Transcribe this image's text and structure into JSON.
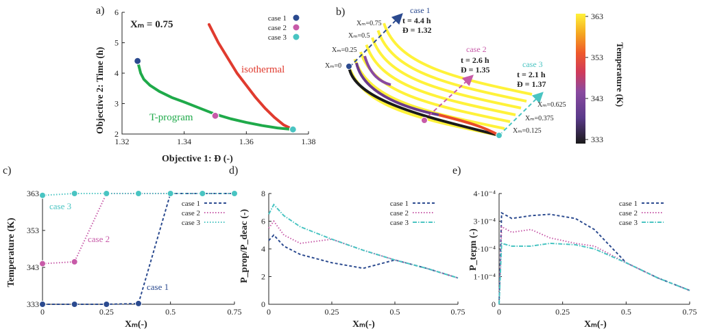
{
  "colors": {
    "case1": "#2b4a8f",
    "case2": "#c75aa8",
    "case3": "#49c4c2",
    "green": "#1faa4a",
    "red": "#e03b2f",
    "axis": "#222222"
  },
  "chart_data": [
    {
      "id": "a",
      "panel_label": "a)",
      "type": "scatter",
      "title": "Xₘ = 0.75",
      "xlabel": "Objective 1: Đ (-)",
      "ylabel": "Objective 2: Time (h)",
      "xlim": [
        1.32,
        1.38
      ],
      "ylim": [
        2,
        6
      ],
      "xticks": [
        "1.32",
        "1.34",
        "1.36",
        "1.38"
      ],
      "yticks": [
        "2",
        "3",
        "4",
        "5",
        "6"
      ],
      "series": [
        {
          "name": "isothermal",
          "color_key": "red",
          "x": [
            1.348,
            1.351,
            1.354,
            1.357,
            1.36,
            1.363,
            1.366,
            1.369,
            1.372,
            1.375
          ],
          "y": [
            5.6,
            5.0,
            4.5,
            4.0,
            3.6,
            3.2,
            2.85,
            2.55,
            2.3,
            2.15
          ]
        },
        {
          "name": "T-program",
          "color_key": "green",
          "x": [
            1.325,
            1.3255,
            1.326,
            1.327,
            1.329,
            1.332,
            1.336,
            1.34,
            1.345,
            1.35,
            1.355,
            1.36,
            1.365,
            1.37,
            1.375
          ],
          "y": [
            4.4,
            4.2,
            4.0,
            3.8,
            3.6,
            3.4,
            3.2,
            3.05,
            2.85,
            2.65,
            2.5,
            2.38,
            2.28,
            2.2,
            2.15
          ]
        }
      ],
      "markers": [
        {
          "name": "case 1",
          "x": 1.325,
          "y": 4.4,
          "color_key": "case1"
        },
        {
          "name": "case 2",
          "x": 1.35,
          "y": 2.6,
          "color_key": "case2"
        },
        {
          "name": "case 3",
          "x": 1.375,
          "y": 2.15,
          "color_key": "case3"
        }
      ],
      "legend": [
        "case 1",
        "case 2",
        "case 3"
      ],
      "labels": {
        "isothermal": "isothermal",
        "tprogram": "T-program"
      }
    },
    {
      "id": "b",
      "panel_label": "b)",
      "type": "line",
      "colorbar": {
        "title": "Temperature (K)",
        "ticks": [
          "363",
          "353",
          "343",
          "333"
        ],
        "range": [
          333,
          363
        ]
      },
      "annotations": {
        "case1": {
          "title": "case 1",
          "t": "t = 4.4 h",
          "D": "Đ = 1.32"
        },
        "case2": {
          "title": "case 2",
          "t": "t = 2.6 h",
          "D": "Đ = 1.35"
        },
        "case3": {
          "title": "case 3",
          "t": "t = 2.1 h",
          "D": "Đ = 1.37"
        }
      },
      "xm_labels": [
        "Xₘ=0",
        "Xₘ=0.25",
        "Xₘ=0.5",
        "Xₘ=0.75",
        "Xₘ=0.625",
        "Xₘ=0.375",
        "Xₘ=0.125"
      ]
    },
    {
      "id": "c",
      "panel_label": "c)",
      "type": "line",
      "xlabel": "Xₘ(-)",
      "ylabel": "Temperature (K)",
      "xlim": [
        0,
        0.75
      ],
      "ylim": [
        333,
        363
      ],
      "xticks": [
        "0",
        "0.25",
        "0.5",
        "0.75"
      ],
      "yticks": [
        "333",
        "343",
        "353",
        "363"
      ],
      "x": [
        0,
        0.125,
        0.25,
        0.375,
        0.5,
        0.625,
        0.75
      ],
      "series": [
        {
          "name": "case 1",
          "color_key": "case1",
          "dash": "4,3",
          "values": [
            333,
            333,
            333,
            333.2,
            363,
            363,
            363
          ]
        },
        {
          "name": "case 2",
          "color_key": "case2",
          "dash": "1.5,2.5",
          "values": [
            344,
            344.5,
            363,
            363,
            363,
            363,
            363
          ]
        },
        {
          "name": "case 3",
          "color_key": "case3",
          "dash": "1.5,2.5",
          "values": [
            362.5,
            363,
            363,
            363,
            363,
            363,
            363
          ]
        }
      ],
      "legend": [
        "case 1",
        "case 2",
        "case 3"
      ],
      "curve_labels": [
        "case 3",
        "case 2",
        "case 1"
      ]
    },
    {
      "id": "d",
      "panel_label": "d)",
      "type": "line",
      "xlabel": "Xₘ(-)",
      "ylabel": "P_prop/P_deac (-)",
      "xlim": [
        0,
        0.75
      ],
      "ylim": [
        0,
        8
      ],
      "xticks": [
        "0",
        "0.25",
        "0.5",
        "0.75"
      ],
      "yticks": [
        "0",
        "2",
        "4",
        "6",
        "8"
      ],
      "x": [
        0,
        0.02,
        0.06,
        0.125,
        0.25,
        0.375,
        0.5,
        0.625,
        0.75
      ],
      "series": [
        {
          "name": "case 1",
          "color_key": "case1",
          "dash": "4,3",
          "values": [
            4.6,
            5.0,
            4.2,
            3.6,
            3.0,
            2.6,
            3.2,
            2.6,
            1.9
          ]
        },
        {
          "name": "case 2",
          "color_key": "case2",
          "dash": "1.5,2.5",
          "values": [
            5.5,
            6.0,
            5.0,
            4.4,
            4.7,
            3.9,
            3.2,
            2.6,
            1.9
          ]
        },
        {
          "name": "case 3",
          "color_key": "case3",
          "dash": "6,2,1.5,2",
          "values": [
            6.5,
            7.2,
            6.4,
            5.6,
            4.7,
            3.9,
            3.2,
            2.6,
            1.9
          ]
        }
      ],
      "legend": [
        "case 1",
        "case 2",
        "case 3"
      ]
    },
    {
      "id": "e",
      "panel_label": "e)",
      "type": "line",
      "xlabel": "Xₘ(-)",
      "ylabel": "P_term (-)",
      "xlim": [
        0,
        0.75
      ],
      "ylim": [
        0,
        0.0004
      ],
      "xticks": [
        "0",
        "0.25",
        "0.5",
        "0.75"
      ],
      "yticks": [
        "0",
        "1·10⁻⁴",
        "2·10⁻⁴",
        "3·10⁻⁴",
        "4·10⁻⁴"
      ],
      "x": [
        0,
        0.01,
        0.05,
        0.125,
        0.2,
        0.3,
        0.375,
        0.5,
        0.625,
        0.75
      ],
      "series": [
        {
          "name": "case 1",
          "color_key": "case1",
          "dash": "4,3",
          "values": [
            0.0,
            0.00033,
            0.00031,
            0.00032,
            0.000325,
            0.00031,
            0.00027,
            0.00015,
            9.5e-05,
            5e-05
          ]
        },
        {
          "name": "case 2",
          "color_key": "case2",
          "dash": "1.5,2.5",
          "values": [
            0.0,
            0.00028,
            0.00026,
            0.00027,
            0.00024,
            0.00022,
            0.00021,
            0.00015,
            9.5e-05,
            5e-05
          ]
        },
        {
          "name": "case 3",
          "color_key": "case3",
          "dash": "6,2,1.5,2",
          "values": [
            0.0,
            0.00022,
            0.00021,
            0.00021,
            0.00022,
            0.000215,
            0.0002,
            0.00015,
            9.5e-05,
            5e-05
          ]
        }
      ],
      "legend": [
        "case 1",
        "case 2",
        "case 3"
      ]
    }
  ]
}
